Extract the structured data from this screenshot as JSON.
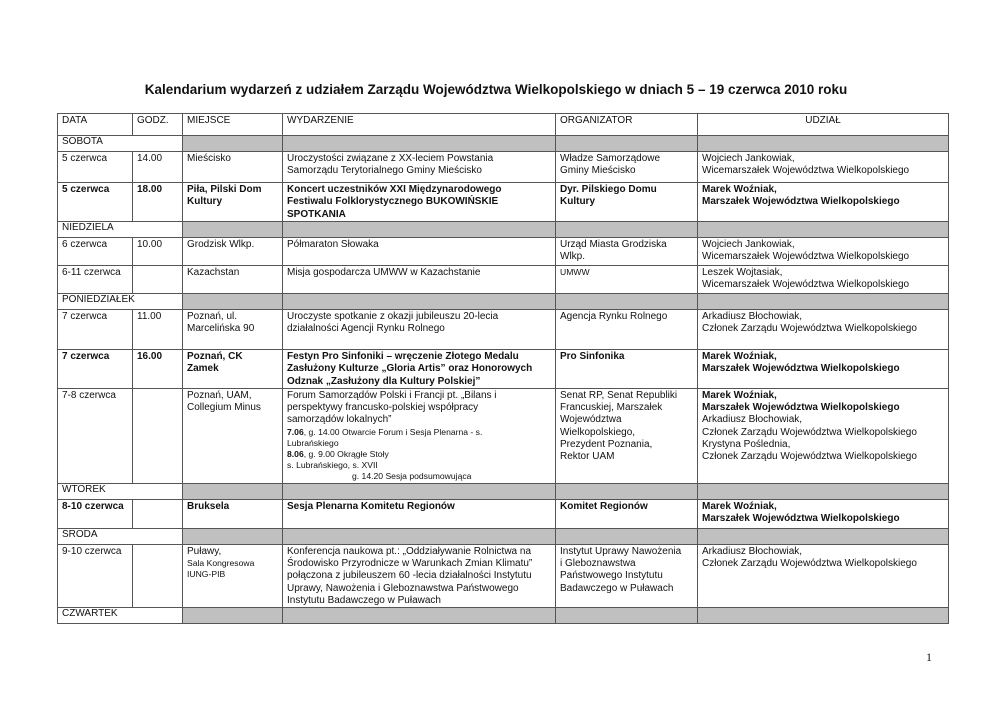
{
  "title": "Kalendarium wydarzeń z udziałem Zarządu Województwa Wielkopolskiego w dniach 5 – 19 czerwca 2010 roku",
  "columns": [
    "DATA",
    "GODZ.",
    "MIEJSCE",
    "WYDARZENIE",
    "ORGANIZATOR",
    "UDZIAŁ"
  ],
  "rows": [
    {
      "type": "day",
      "label": "SOBOTA"
    },
    {
      "type": "event",
      "h": 29,
      "cells": [
        [
          "5 czerwca"
        ],
        [
          "14.00"
        ],
        [
          "Mieścisko"
        ],
        [
          "Uroczystości związane z XX-leciem Powstania",
          "Samorządu Terytorialnego Gminy Mieścisko"
        ],
        [
          "Władze Samorządowe",
          "Gminy Mieścisko"
        ],
        [
          "Wojciech Jankowiak,",
          "Wicemarszałek Województwa Wielkopolskiego"
        ]
      ]
    },
    {
      "type": "event",
      "bold": true,
      "h": 37,
      "cells": [
        [
          "5 czerwca"
        ],
        [
          "18.00"
        ],
        [
          "Piła, Pilski Dom",
          "Kultury"
        ],
        [
          "Koncert uczestników XXI Międzynarodowego",
          "Festiwalu Folklorystycznego BUKOWIŃSKIE",
          "SPOTKANIA"
        ],
        [
          "Dyr. Pilskiego Domu",
          "Kultury"
        ],
        [
          "Marek Woźniak,",
          "Marszałek Województwa Wielkopolskiego"
        ]
      ]
    },
    {
      "type": "day",
      "label": "NIEDZIELA",
      "h": 10
    },
    {
      "type": "event",
      "h": 26,
      "cells": [
        [
          "6 czerwca"
        ],
        [
          "10.00"
        ],
        [
          "Grodzisk Wlkp."
        ],
        [
          "Półmaraton Słowaka"
        ],
        [
          "Urząd Miasta Grodziska",
          "Wlkp."
        ],
        [
          "Wojciech Jankowiak,",
          "Wicemarszałek Województwa Wielkopolskiego"
        ]
      ]
    },
    {
      "type": "event",
      "h": 26,
      "cells": [
        [
          "6-11 czerwca"
        ],
        [
          ""
        ],
        [
          "Kazachstan"
        ],
        [
          "Misja gospodarcza UMWW w Kazachstanie"
        ],
        [
          {
            "t": "UMWW",
            "sm": true
          }
        ],
        [
          "Leszek Wojtasiak,",
          "Wicemarszałek Województwa Wielkopolskiego"
        ]
      ]
    },
    {
      "type": "day",
      "label": "PONIEDZIAŁEK",
      "h": 10
    },
    {
      "type": "event",
      "h": 38,
      "cells": [
        [
          "7 czerwca"
        ],
        [
          "11.00"
        ],
        [
          "Poznań, ul.",
          "Marcelińska 90"
        ],
        [
          "Uroczyste spotkanie z okazji jubileuszu 20-lecia",
          "działalności Agencji Rynku Rolnego"
        ],
        [
          "Agencja Rynku Rolnego"
        ],
        [
          "Arkadiusz Błochowiak,",
          "Członek Zarządu Województwa Wielkopolskiego"
        ]
      ]
    },
    {
      "type": "event",
      "bold": true,
      "h": 36,
      "cells": [
        [
          "7 czerwca"
        ],
        [
          "16.00"
        ],
        [
          "Poznań, CK",
          "Zamek"
        ],
        [
          "Festyn Pro Sinfoniki – wręczenie Złotego Medalu",
          "Zasłużony Kulturze „Gloria Artis” oraz Honorowych",
          "Odznak „Zasłużony dla Kultury Polskiej”"
        ],
        [
          "Pro Sinfonika"
        ],
        [
          "Marek Woźniak,",
          "Marszałek Województwa Wielkopolskiego"
        ]
      ]
    },
    {
      "type": "event",
      "h": 93,
      "cells": [
        [
          "7-8 czerwca"
        ],
        [
          ""
        ],
        [
          "Poznań, UAM,",
          "Collegium Minus"
        ],
        [
          "Forum Samorządów Polski i Francji pt. „Bilans i",
          "perspektywy francusko-polskiej współpracy",
          "samorządów lokalnych”",
          {
            "b": "7.06",
            "t": ", g. 14.00 Otwarcie Forum i Sesja Plenarna - s.",
            "sm": true
          },
          {
            "t": "Lubrańskiego",
            "sm": true
          },
          {
            "b": "8.06",
            "t": ", g. 9.00 Okrągłe Stoły",
            "sm": true
          },
          {
            "t": "s. Lubrańskiego, s. XVII",
            "sm": true
          },
          {
            "t": "g. 14.20 Sesja podsumowująca",
            "sm": true,
            "ind": true
          }
        ],
        [
          "Senat RP, Senat Republiki",
          "Francuskiej, Marszałek",
          "Województwa",
          "Wielkopolskiego,",
          "Prezydent Poznania,",
          "Rektor UAM"
        ],
        [
          {
            "b": "Marek Woźniak,"
          },
          {
            "b": "Marszałek Województwa Wielkopolskiego"
          },
          "Arkadiusz Błochowiak,",
          "Członek Zarządu Województwa Wielkopolskiego",
          "Krystyna Poślednia,",
          "Członek Zarządu Województwa Wielkopolskiego"
        ]
      ]
    },
    {
      "type": "day",
      "label": "WTOREK",
      "h": 10
    },
    {
      "type": "event",
      "bold": true,
      "h": 27,
      "cells": [
        [
          "8-10 czerwca"
        ],
        [
          ""
        ],
        [
          "Bruksela"
        ],
        [
          "Sesja Plenarna Komitetu Regionów"
        ],
        [
          "Komitet Regionów"
        ],
        [
          "Marek Woźniak,",
          "Marszałek Województwa Wielkopolskiego"
        ]
      ]
    },
    {
      "type": "day",
      "label": "ŚRODA"
    },
    {
      "type": "event",
      "h": 61,
      "cells": [
        [
          "9-10 czerwca"
        ],
        [
          ""
        ],
        [
          "Puławy,",
          {
            "t": "Sala Kongresowa",
            "sm": true
          },
          {
            "t": "IUNG-PIB",
            "sm": true
          }
        ],
        [
          "Konferencja naukowa pt.: „Oddziaływanie Rolnictwa na",
          "Środowisko Przyrodnicze w Warunkach Zmian Klimatu”",
          "połączona z jubileuszem  60 -lecia działalności Instytutu",
          "Uprawy, Nawożenia i Gleboznawstwa Państwowego",
          "Instytutu Badawczego w Puławach"
        ],
        [
          "Instytut Uprawy Nawożenia",
          "i Gleboznawstwa",
          "Państwowego Instytutu",
          "Badawczego w Puławach"
        ],
        [
          "Arkadiusz Błochowiak,",
          "Członek Zarządu Województwa Wielkopolskiego"
        ]
      ]
    },
    {
      "type": "day",
      "label": "CZWARTEK",
      "h": 10
    }
  ],
  "page_number": "1"
}
